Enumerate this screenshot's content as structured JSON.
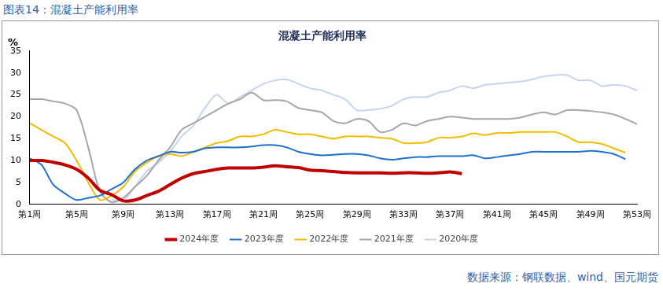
{
  "caption": "图表14：混凝土产能利用率",
  "source": "数据来源：钢联数据、wind、国元期货",
  "chart_data": {
    "type": "line",
    "title": "混凝土产能利用率",
    "y_label": "%",
    "categories": [
      "第1周",
      null,
      null,
      null,
      "第5周",
      null,
      null,
      null,
      "第9周",
      null,
      null,
      null,
      "第13周",
      null,
      null,
      null,
      "第17周",
      null,
      null,
      null,
      "第21周",
      null,
      null,
      null,
      "第25周",
      null,
      null,
      null,
      "第29周",
      null,
      null,
      null,
      "第33周",
      null,
      null,
      null,
      "第37周",
      null,
      null,
      null,
      "第41周",
      null,
      null,
      null,
      "第45周",
      null,
      null,
      null,
      "第49周",
      null,
      null,
      null,
      "第53周"
    ],
    "ylim": [
      0,
      35
    ],
    "yticks": [
      0,
      5,
      10,
      15,
      20,
      25,
      30,
      35
    ],
    "grid": false,
    "legend": "bottom",
    "series": [
      {
        "name": "2024年度",
        "color": "#c00000",
        "values": [
          10,
          10,
          9.6,
          9,
          8,
          6,
          3.2,
          2.2,
          0.8,
          1,
          2,
          3,
          4.5,
          6,
          7,
          7.5,
          8,
          8.3,
          8.3,
          8.3,
          8.5,
          8.8,
          8.6,
          8.4,
          7.8,
          7.7,
          7.5,
          7.3,
          7.2,
          7.2,
          7.2,
          7.1,
          7.2,
          7.2,
          7.1,
          7.2,
          7.4,
          7.0,
          null,
          null,
          null,
          null,
          null,
          null,
          null,
          null,
          null,
          null,
          null,
          null,
          null,
          null,
          null
        ]
      },
      {
        "name": "2023年度",
        "color": "#1f6fd0",
        "values": [
          10.5,
          9,
          4.5,
          2.5,
          1,
          1.5,
          2,
          3.5,
          5,
          8,
          10,
          11,
          12,
          11.8,
          12,
          12.8,
          13,
          13,
          13,
          13.2,
          13.5,
          13.5,
          13,
          12,
          11.5,
          11.2,
          11.3,
          11.5,
          11.5,
          11.2,
          10.5,
          10.2,
          10.5,
          10.8,
          10.8,
          11,
          11,
          11,
          11.2,
          10.5,
          10.8,
          11.2,
          11.5,
          12,
          12,
          12,
          12,
          12,
          12.2,
          12,
          11.5,
          10.3,
          null
        ]
      },
      {
        "name": "2022年度",
        "color": "#f2bd00",
        "values": [
          18.5,
          17,
          15.5,
          14,
          10,
          5,
          1,
          2,
          4,
          7.5,
          9.5,
          11,
          11.5,
          11,
          12,
          13,
          14,
          14.5,
          15.5,
          15.5,
          16,
          17,
          16.5,
          16,
          16,
          15.5,
          15,
          15.5,
          15.5,
          15.5,
          15.2,
          15,
          14,
          14,
          14.2,
          15.2,
          15.2,
          15.5,
          16.2,
          15.8,
          16.3,
          16.3,
          16.5,
          16.5,
          16.5,
          16.5,
          15.5,
          14.2,
          14.2,
          13.8,
          12.8,
          11.8,
          null
        ]
      },
      {
        "name": "2021年度",
        "color": "#a6a6a6",
        "values": [
          24,
          24,
          23.5,
          23,
          21.5,
          13,
          3,
          0.5,
          1.5,
          4,
          6.5,
          10,
          13,
          17,
          18.5,
          20,
          21.5,
          23,
          24,
          25.5,
          23.8,
          23.8,
          23.5,
          22,
          21.5,
          21,
          19,
          18.5,
          19.5,
          19,
          16.5,
          17,
          18.5,
          18,
          19,
          19.5,
          20,
          19.8,
          19.5,
          19.5,
          19.5,
          19.5,
          19.8,
          20.5,
          21,
          20.5,
          21.5,
          21.5,
          21.3,
          21,
          20.5,
          19.5,
          18.3
        ]
      },
      {
        "name": "2020年度",
        "color": "#c5d5f0",
        "values": [
          null,
          null,
          null,
          null,
          null,
          null,
          null,
          1,
          1,
          4,
          7.5,
          9.5,
          12,
          15.5,
          18,
          22,
          25,
          23,
          24.5,
          26,
          27.5,
          28.3,
          28.5,
          27.5,
          26.5,
          26,
          25,
          24,
          21.5,
          21.5,
          21.8,
          22.5,
          24,
          24.5,
          24.5,
          25.5,
          26,
          27,
          26.5,
          27.3,
          27.5,
          27.8,
          28,
          28.5,
          29.2,
          29.5,
          29.5,
          28.3,
          28.3,
          27,
          27.3,
          27,
          26
        ]
      }
    ]
  }
}
